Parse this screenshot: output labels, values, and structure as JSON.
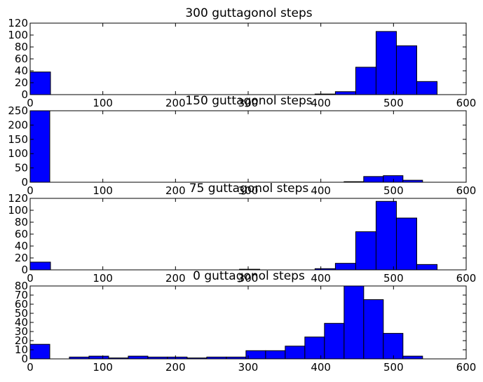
{
  "colors": {
    "bar_fill": "#0000ff",
    "bar_stroke": "#000000",
    "background": "#ffffff"
  },
  "chart_data": [
    {
      "type": "bar",
      "title": "300 guttagonol steps",
      "xlabel": "",
      "ylabel": "",
      "xlim": [
        0,
        600
      ],
      "ylim": [
        0,
        120
      ],
      "xticks": [
        0,
        100,
        200,
        300,
        400,
        500,
        600
      ],
      "yticks": [
        0,
        20,
        40,
        60,
        80,
        100,
        120
      ],
      "grid": false,
      "bins": [
        {
          "x0": 0,
          "x1": 28,
          "value": 38
        },
        {
          "x0": 392,
          "x1": 420,
          "value": 1
        },
        {
          "x0": 420,
          "x1": 448,
          "value": 5
        },
        {
          "x0": 448,
          "x1": 476,
          "value": 46
        },
        {
          "x0": 476,
          "x1": 504,
          "value": 106
        },
        {
          "x0": 504,
          "x1": 532,
          "value": 82
        },
        {
          "x0": 532,
          "x1": 560,
          "value": 22
        }
      ]
    },
    {
      "type": "bar",
      "title": "150 guttagonol steps",
      "xlabel": "",
      "ylabel": "",
      "xlim": [
        0,
        600
      ],
      "ylim": [
        0,
        250
      ],
      "xticks": [
        0,
        100,
        200,
        300,
        400,
        500,
        600
      ],
      "yticks": [
        0,
        50,
        100,
        150,
        200,
        250
      ],
      "grid": false,
      "bins": [
        {
          "x0": 0,
          "x1": 27,
          "value": 250
        },
        {
          "x0": 432,
          "x1": 459,
          "value": 2
        },
        {
          "x0": 459,
          "x1": 486,
          "value": 20
        },
        {
          "x0": 486,
          "x1": 513,
          "value": 23
        },
        {
          "x0": 513,
          "x1": 540,
          "value": 7
        }
      ]
    },
    {
      "type": "bar",
      "title": "75 guttagonol steps",
      "xlabel": "",
      "ylabel": "",
      "xlim": [
        0,
        600
      ],
      "ylim": [
        0,
        120
      ],
      "xticks": [
        0,
        100,
        200,
        300,
        400,
        500,
        600
      ],
      "yticks": [
        0,
        20,
        40,
        60,
        80,
        100,
        120
      ],
      "grid": false,
      "bins": [
        {
          "x0": 0,
          "x1": 28,
          "value": 13
        },
        {
          "x0": 288,
          "x1": 316,
          "value": 1
        },
        {
          "x0": 392,
          "x1": 420,
          "value": 2
        },
        {
          "x0": 420,
          "x1": 448,
          "value": 11
        },
        {
          "x0": 448,
          "x1": 476,
          "value": 64
        },
        {
          "x0": 476,
          "x1": 504,
          "value": 115
        },
        {
          "x0": 504,
          "x1": 532,
          "value": 87
        },
        {
          "x0": 532,
          "x1": 560,
          "value": 9
        }
      ]
    },
    {
      "type": "bar",
      "title": "0 guttagonol steps",
      "xlabel": "",
      "ylabel": "",
      "xlim": [
        0,
        600
      ],
      "ylim": [
        0,
        80
      ],
      "xticks": [
        0,
        100,
        200,
        300,
        400,
        500,
        600
      ],
      "yticks": [
        0,
        10,
        20,
        30,
        40,
        50,
        60,
        70,
        80
      ],
      "grid": false,
      "bins": [
        {
          "x0": 0,
          "x1": 27,
          "value": 16
        },
        {
          "x0": 54,
          "x1": 81,
          "value": 2
        },
        {
          "x0": 81,
          "x1": 108,
          "value": 3
        },
        {
          "x0": 108,
          "x1": 135,
          "value": 1
        },
        {
          "x0": 135,
          "x1": 162,
          "value": 3
        },
        {
          "x0": 162,
          "x1": 189,
          "value": 2
        },
        {
          "x0": 189,
          "x1": 216,
          "value": 2
        },
        {
          "x0": 216,
          "x1": 243,
          "value": 1
        },
        {
          "x0": 243,
          "x1": 270,
          "value": 2
        },
        {
          "x0": 270,
          "x1": 297,
          "value": 2
        },
        {
          "x0": 297,
          "x1": 324,
          "value": 9
        },
        {
          "x0": 324,
          "x1": 351,
          "value": 9
        },
        {
          "x0": 351,
          "x1": 378,
          "value": 14
        },
        {
          "x0": 378,
          "x1": 405,
          "value": 24
        },
        {
          "x0": 405,
          "x1": 432,
          "value": 39
        },
        {
          "x0": 432,
          "x1": 459,
          "value": 81
        },
        {
          "x0": 459,
          "x1": 486,
          "value": 65
        },
        {
          "x0": 486,
          "x1": 513,
          "value": 28
        },
        {
          "x0": 513,
          "x1": 540,
          "value": 3
        }
      ]
    }
  ]
}
